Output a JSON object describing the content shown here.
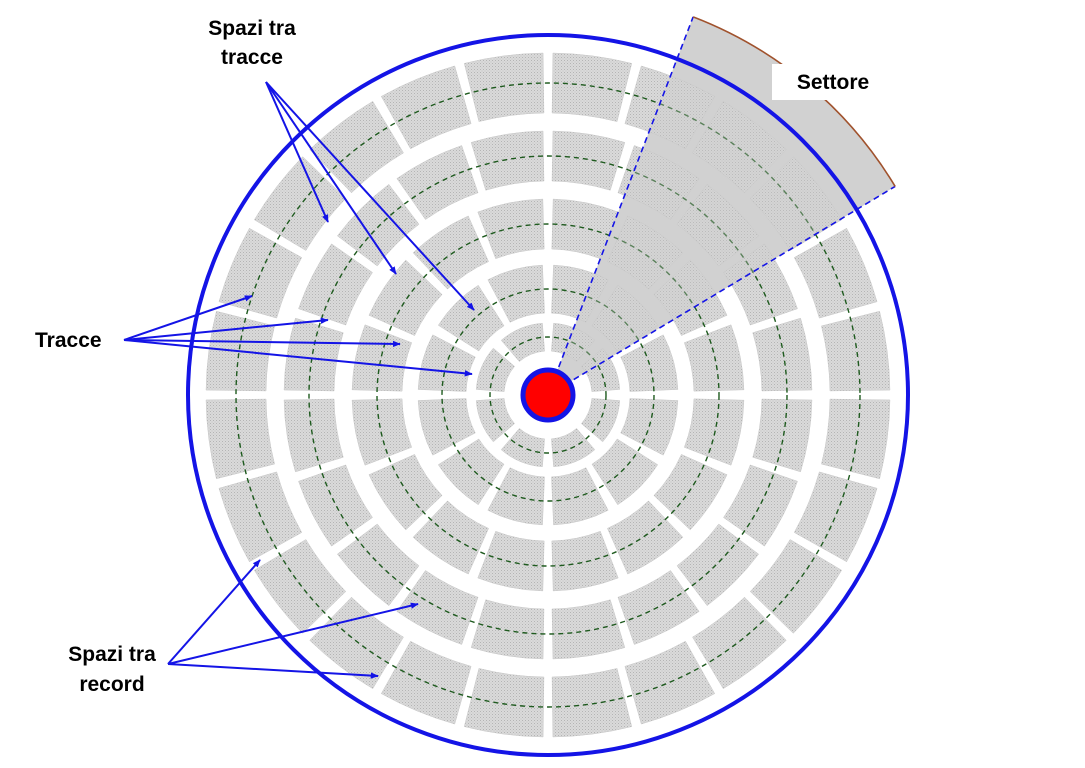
{
  "labels": {
    "track_gaps_line1": "Spazi tra",
    "track_gaps_line2": "tracce",
    "tracks": "Tracce",
    "record_gaps_line1": "Spazi tra",
    "record_gaps_line2": "record",
    "sector": "Settore"
  },
  "disk": {
    "track_count": 6,
    "records_per_track": [
      4,
      8,
      12,
      16,
      20,
      24
    ]
  },
  "colors": {
    "disk_outline": "#1414e6",
    "hub_fill": "#ff0000",
    "hub_outline": "#1414e6",
    "record_fill": "#d6d6d6",
    "track_center_line": "#1e5a1e",
    "sector_fill": "#c8c8c8",
    "sector_edge": "#1414e6",
    "sector_arc": "#a0522d",
    "arrow": "#1414e6"
  }
}
